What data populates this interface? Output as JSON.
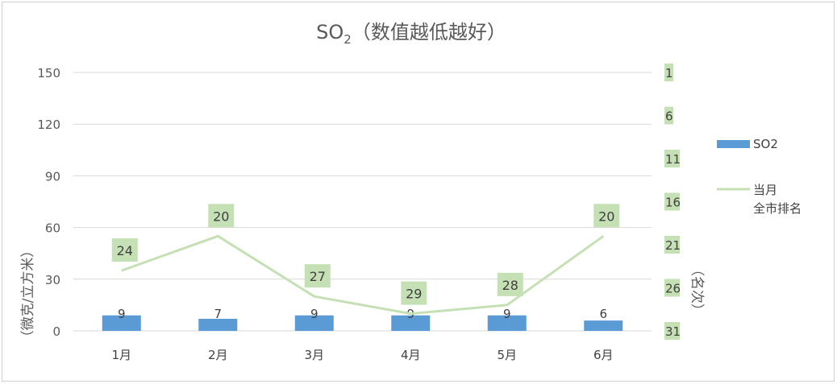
{
  "chart_data": {
    "type": "bar+line",
    "title_main": "SO",
    "title_sub": "2",
    "title_rest": "（数值越低越好）",
    "categories": [
      "1月",
      "2月",
      "3月",
      "4月",
      "5月",
      "6月"
    ],
    "y_left": {
      "label": "（微克/立方米）",
      "ticks": [
        "150",
        "120",
        "90",
        "60",
        "30",
        "0"
      ],
      "min": 0,
      "max": 150
    },
    "y_right": {
      "label": "（名次）",
      "ticks": [
        "1",
        "6",
        "11",
        "16",
        "21",
        "26",
        "31"
      ],
      "min": 1,
      "max": 31,
      "inverted": true
    },
    "series": [
      {
        "name": "SO2",
        "type": "bar",
        "axis": "left",
        "values": [
          9,
          7,
          9,
          9,
          9,
          6
        ],
        "labels": [
          "9",
          "7",
          "9",
          "9",
          "9",
          "6"
        ],
        "color": "#5b9bd5"
      },
      {
        "name_line1": "当月",
        "name_line2": "全市排名",
        "type": "line",
        "axis": "right",
        "values": [
          24,
          20,
          27,
          29,
          28,
          20
        ],
        "labels": [
          "24",
          "20",
          "27",
          "29",
          "28",
          "20"
        ],
        "color": "#c5e0b4"
      }
    ],
    "grid": true,
    "legend_position": "right"
  }
}
